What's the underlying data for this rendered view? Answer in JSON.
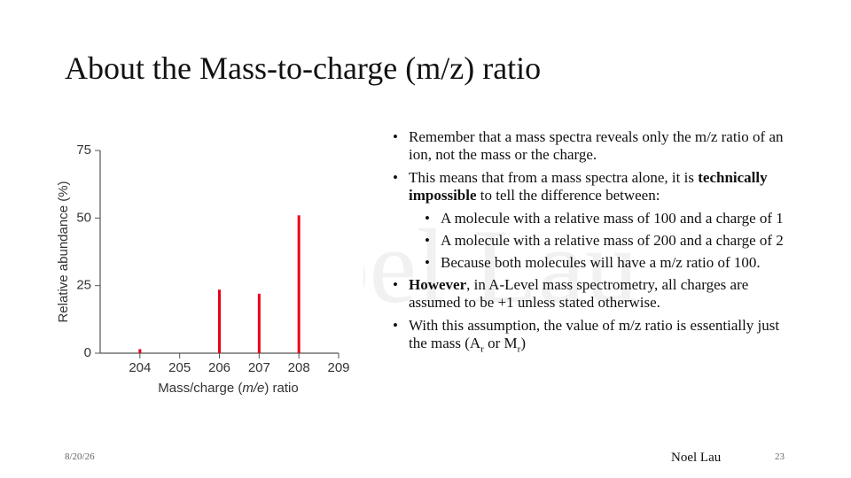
{
  "slide": {
    "title": "About the Mass-to-charge (m/z) ratio",
    "watermark": "Noel Lau",
    "bullets": [
      {
        "level": 1,
        "runs": [
          "Remember that a mass spectra reveals only the m/z ratio of an ion, not the mass or the charge."
        ]
      },
      {
        "level": 1,
        "runs": [
          "This means that from a mass spectra alone, it is ",
          {
            "text": "technically impossible",
            "style": "bold"
          },
          " to tell the difference between:"
        ]
      },
      {
        "level": 2,
        "runs": [
          "A molecule with a relative mass of 100 and a charge of 1"
        ]
      },
      {
        "level": 2,
        "runs": [
          "A molecule with a relative mass of 200 and a charge of 2"
        ]
      },
      {
        "level": 2,
        "runs": [
          "Because both molecules will have a m/z ratio of 100."
        ]
      },
      {
        "level": 1,
        "runs": [
          {
            "text": "However",
            "style": "bold"
          },
          ", in A-Level mass spectrometry, all charges are assumed to be +1 unless stated otherwise."
        ]
      },
      {
        "level": 1,
        "runs": [
          "With this assumption, the value of m/z ratio is essentially just the mass (A",
          {
            "text": "r",
            "style": "sub"
          },
          " or M",
          {
            "text": "r",
            "style": "sub"
          },
          ")"
        ]
      }
    ],
    "footer": {
      "date": "8/20/26",
      "author": "Noel Lau",
      "page": 23
    }
  },
  "chart_data": {
    "type": "bar",
    "x": [
      204,
      206,
      207,
      208
    ],
    "values": [
      1.5,
      23.5,
      22,
      51
    ],
    "color": "#e8001c",
    "xlim": [
      203,
      209
    ],
    "xticks": [
      204,
      205,
      206,
      207,
      208,
      209
    ],
    "ylim": [
      0,
      75
    ],
    "yticks": [
      0,
      25,
      50,
      75
    ],
    "ylabel": "Relative abundance (%)",
    "xlabel": [
      "Mass/charge (",
      {
        "text": "m/e",
        "style": "italic"
      },
      ") ratio"
    ]
  }
}
